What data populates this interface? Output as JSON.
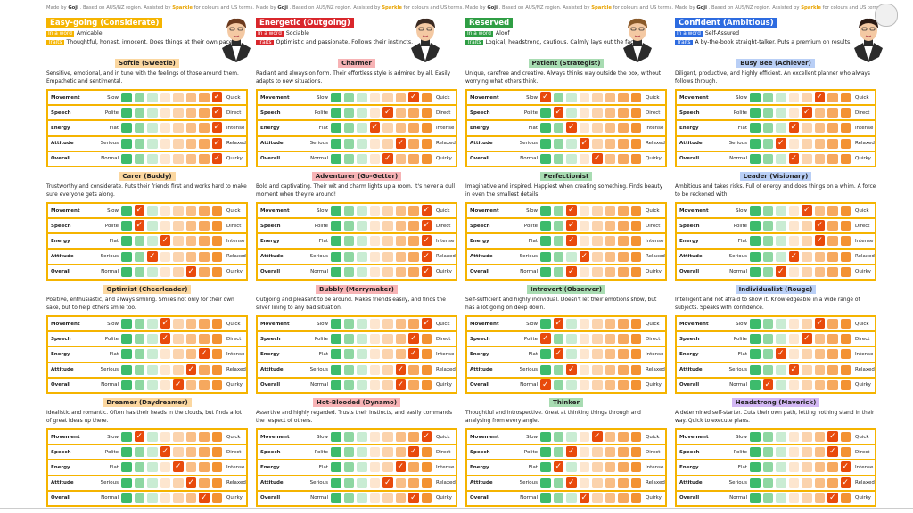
{
  "credit": {
    "made_by": "Made by",
    "author": "Goji",
    "mid": ". Based on AUS/NZ region. Assisted by",
    "assist": "Sparkle",
    "tail": "for colours and US terms."
  },
  "tags": {
    "in_a_word": "In a word",
    "traits": "Traits"
  },
  "row_labels": [
    {
      "name": "Movement",
      "min": "Slow",
      "max": "Quick"
    },
    {
      "name": "Speech",
      "min": "Polite",
      "max": "Direct"
    },
    {
      "name": "Energy",
      "min": "Flat",
      "max": "Intense"
    },
    {
      "name": "Attitude",
      "min": "Serious",
      "max": "Relaxed"
    },
    {
      "name": "Overall",
      "min": "Normal",
      "max": "Quirky"
    }
  ],
  "cell_colors": [
    "#3dbb6c",
    "#8ed7a2",
    "#c9ecd3",
    "#fde6cf",
    "#fbd3ad",
    "#f9be86",
    "#f6a85e",
    "#f39232"
  ],
  "columns": [
    {
      "category": "Easy-going (Considerate)",
      "category_color": "#f5b400",
      "word": "Amicable",
      "traits": "Thoughtful, honest, innocent. Does things at their own pace.",
      "personalities": [
        {
          "title": "Softie (Sweetie)",
          "color": "#fbd7a0",
          "desc": "Sensitive, emotional, and in tune with the feelings of those around them. Empathetic and sentimental.",
          "values": [
            8,
            8,
            8,
            8,
            8
          ]
        },
        {
          "title": "Carer (Buddy)",
          "color": "#fbd7a0",
          "desc": "Trustworthy and considerate. Puts their friends first and works hard to make sure everyone gets along.",
          "values": [
            2,
            2,
            4,
            3,
            6
          ]
        },
        {
          "title": "Optimist (Cheerleader)",
          "color": "#fbd7a0",
          "desc": "Positive, enthusiastic, and always smiling. Smiles not only for their own sake, but to help others smile too.",
          "values": [
            4,
            4,
            7,
            6,
            5
          ]
        },
        {
          "title": "Dreamer (Daydreamer)",
          "color": "#fbd7a0",
          "desc": "Idealistic and romantic. Often has their heads in the clouds, but finds a lot of great ideas up there.",
          "values": [
            2,
            4,
            5,
            6,
            7
          ]
        }
      ]
    },
    {
      "category": "Energetic (Outgoing)",
      "category_color": "#d9262b",
      "word": "Sociable",
      "traits": "Optimistic and passionate. Follows their instincts.",
      "personalities": [
        {
          "title": "Charmer",
          "color": "#f7b3b5",
          "desc": "Radiant and always on form. Their effortless style is admired by all. Easily adapts to new situations.",
          "values": [
            7,
            5,
            4,
            6,
            5
          ]
        },
        {
          "title": "Adventurer (Go-Getter)",
          "color": "#f7b3b5",
          "desc": "Bold and captivating. Their wit and charm lights up a room. It's never a dull moment when they're around!",
          "values": [
            8,
            8,
            8,
            8,
            8
          ]
        },
        {
          "title": "Bubbly (Merrymaker)",
          "color": "#f7b3b5",
          "desc": "Outgoing and pleasant to be around. Makes friends easily, and finds the silver lining to any bad situation.",
          "values": [
            8,
            7,
            7,
            6,
            6
          ]
        },
        {
          "title": "Hot-Blooded (Dynamo)",
          "color": "#f7b3b5",
          "desc": "Assertive and highly regarded. Trusts their instincts, and easily commands the respect of others.",
          "values": [
            8,
            7,
            6,
            5,
            7
          ]
        }
      ]
    },
    {
      "category": "Reserved",
      "category_color": "#2f9e44",
      "word": "Aloof",
      "traits": "Logical, headstrong, cautious. Calmly lays out the facts.",
      "personalities": [
        {
          "title": "Patient (Strategist)",
          "color": "#a8dcb2",
          "desc": "Unique, carefree and creative. Always thinks way outside the box, without worrying what others think.",
          "values": [
            1,
            2,
            3,
            4,
            5
          ]
        },
        {
          "title": "Perfectionist",
          "color": "#a8dcb2",
          "desc": "Imaginative and inspired. Happiest when creating something. Finds beauty in even the smallest details.",
          "values": [
            3,
            3,
            3,
            4,
            3
          ]
        },
        {
          "title": "Introvert (Observer)",
          "color": "#a8dcb2",
          "desc": "Self-sufficient and highly individual. Doesn't let their emotions show, but has a lot going on deep down.",
          "values": [
            2,
            1,
            2,
            3,
            1
          ]
        },
        {
          "title": "Thinker",
          "color": "#a8dcb2",
          "desc": "Thoughtful and introspective. Great at thinking things through and analysing from every angle.",
          "values": [
            5,
            3,
            2,
            3,
            4
          ]
        }
      ]
    },
    {
      "category": "Confident (Ambitious)",
      "category_color": "#2d6be0",
      "word": "Self-Assured",
      "traits": "A by-the-book straight-talker. Puts a premium on results.",
      "personalities": [
        {
          "title": "Busy Bee (Achiever)",
          "color": "#b9cff6",
          "desc": "Diligent, productive, and highly efficient. An excellent planner who always follows through.",
          "values": [
            6,
            5,
            4,
            3,
            4
          ]
        },
        {
          "title": "Leader (Visionary)",
          "color": "#b9cff6",
          "desc": "Ambitious and takes risks. Full of energy and does things on a whim. A force to be reckoned with.",
          "values": [
            5,
            6,
            6,
            4,
            3
          ]
        },
        {
          "title": "Individualist (Rouge)",
          "color": "#b9cff6",
          "desc": "Intelligent and not afraid to show it. Knowledgeable in a wide range of subjects. Speaks with confidence.",
          "values": [
            6,
            5,
            3,
            4,
            2
          ]
        },
        {
          "title": "Headstrong (Maverick)",
          "color": "#d2b7f3",
          "desc": "A determined self-starter. Cuts their own path, letting nothing stand in their way. Quick to execute plans.",
          "values": [
            7,
            7,
            8,
            8,
            7
          ]
        }
      ]
    }
  ]
}
